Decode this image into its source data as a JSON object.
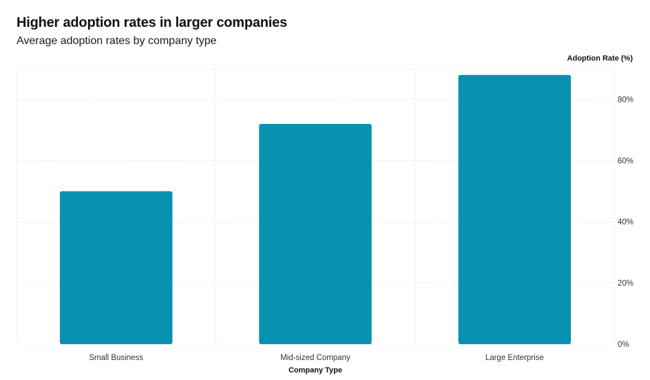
{
  "chart_data": {
    "type": "bar",
    "title": "Higher adoption rates in larger companies",
    "subtitle": "Average adoption rates by company type",
    "xlabel": "Company Type",
    "ylabel": "Adoption Rate (%)",
    "categories": [
      "Small Business",
      "Mid-sized Company",
      "Large Enterprise"
    ],
    "values": [
      50,
      72,
      88
    ],
    "ylim": [
      0,
      90
    ],
    "yticks": [
      0,
      20,
      40,
      60,
      80
    ],
    "ytick_labels": [
      "0%",
      "20%",
      "40%",
      "60%",
      "80%"
    ],
    "y_axis_side": "right",
    "grid": true,
    "legend": "none",
    "colors": {
      "bar": "#0891b2",
      "grid": "#e5e7eb"
    }
  }
}
